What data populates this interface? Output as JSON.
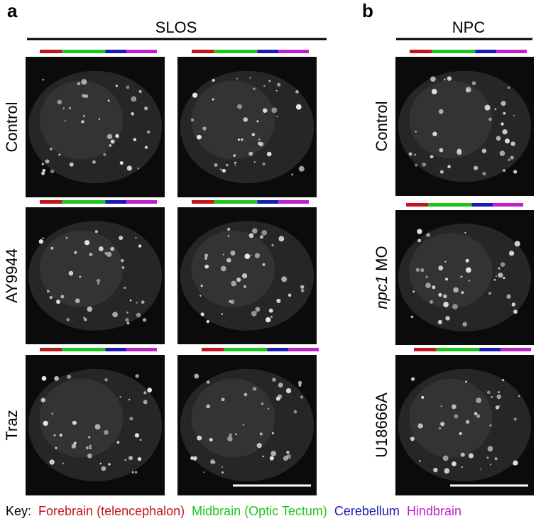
{
  "panels": [
    {
      "label": "a",
      "title": "SLOS",
      "rows": [
        "Control",
        "AY9944",
        "Traz"
      ]
    },
    {
      "label": "b",
      "title": "NPC",
      "rows": [
        "Control",
        {
          "gene": "npc1",
          "suffix": "MO"
        },
        "U18666A"
      ]
    }
  ],
  "key": {
    "label": "Key:",
    "regions": [
      {
        "name": "Forebrain (telencephalon)",
        "color": "#c0161c"
      },
      {
        "name": "Midbrain (Optic Tectum)",
        "color": "#1ec41e"
      },
      {
        "name": "Cerebellum",
        "color": "#1a1ab4"
      },
      {
        "name": "Hindbrain",
        "color": "#c020c8"
      }
    ]
  }
}
